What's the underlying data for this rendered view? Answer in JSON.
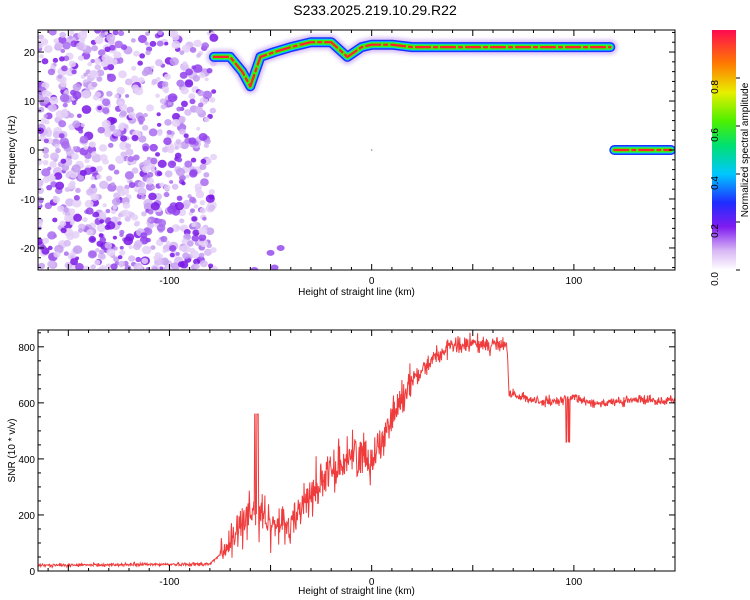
{
  "title": "S233.2025.219.10.29.R22",
  "colorbar": {
    "label": "Normalized spectral amplitude",
    "ticks": [
      "0.0",
      "0.2",
      "0.4",
      "0.6",
      "0.8"
    ]
  },
  "chart_data": [
    {
      "type": "heatmap",
      "xlabel": "Height of straight line (km)",
      "ylabel": "Frequency (Hz)",
      "xlim": [
        -165,
        150
      ],
      "ylim": [
        -24.5,
        24.5
      ],
      "xticks": [
        "-100",
        "0",
        "100"
      ],
      "yticks": [
        "-20",
        "-10",
        "0",
        "10",
        "20"
      ],
      "colorscale": "rainbow (violet to red)",
      "zlim": [
        0,
        1
      ],
      "features": [
        {
          "name": "noise region",
          "x_range": [
            -165,
            -80
          ],
          "y_range": [
            -24.5,
            24.5
          ],
          "level": 0.15
        },
        {
          "name": "main band",
          "x": [
            -78,
            -70,
            -64,
            -60,
            -55,
            -48,
            -40,
            -30,
            -20,
            -12,
            -5,
            0,
            10,
            20,
            40,
            60,
            80,
            100,
            118
          ],
          "y": [
            19,
            19,
            16,
            13,
            19,
            20,
            21,
            22,
            22,
            19,
            21,
            21.5,
            21.5,
            21,
            21,
            21,
            21,
            21,
            21
          ],
          "level": 0.9
        },
        {
          "name": "zero-frequency band",
          "x_range": [
            120,
            148
          ],
          "y": 0,
          "level": 0.95
        }
      ]
    },
    {
      "type": "line",
      "xlabel": "Height of straight line (km)",
      "ylabel": "SNR (10 * v/v)",
      "xlim": [
        -165,
        150
      ],
      "ylim": [
        0,
        860
      ],
      "xticks": [
        "-100",
        "0",
        "100"
      ],
      "yticks": [
        "0",
        "200",
        "400",
        "600",
        "800"
      ],
      "color": "#ef3b3b",
      "key_points": {
        "x": [
          -165,
          -80,
          -70,
          -60,
          -50,
          -40,
          -30,
          -20,
          -10,
          0,
          10,
          20,
          30,
          40,
          50,
          60,
          67,
          68,
          80,
          90,
          100,
          110,
          120,
          130,
          140,
          150
        ],
        "y": [
          20,
          25,
          90,
          230,
          160,
          170,
          280,
          350,
          420,
          400,
          550,
          680,
          760,
          800,
          810,
          810,
          800,
          630,
          610,
          600,
          620,
          600,
          600,
          610,
          610,
          610
        ]
      }
    }
  ]
}
